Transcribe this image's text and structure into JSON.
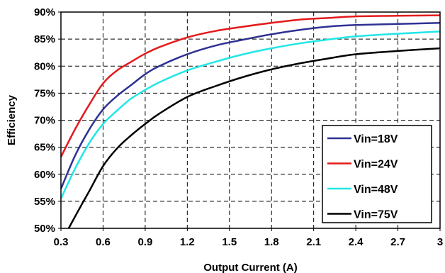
{
  "chart_data": {
    "type": "line",
    "xlabel": "Output Current (A)",
    "ylabel": "Efficiency",
    "xlim": [
      0.3,
      3.0
    ],
    "ylim": [
      50,
      90
    ],
    "x_ticks": [
      "0.3",
      "0.6",
      "0.9",
      "1.2",
      "1.5",
      "1.8",
      "2.1",
      "2.4",
      "2.7",
      "3"
    ],
    "y_ticks": [
      "50%",
      "55%",
      "60%",
      "65%",
      "70%",
      "75%",
      "80%",
      "85%",
      "90%"
    ],
    "grid": true,
    "grid_style": "dashed",
    "legend_position": "bottom-right",
    "series": [
      {
        "name": "Vin=18V",
        "color": "#2e3192",
        "points": [
          [
            0.3,
            57.3
          ],
          [
            0.4,
            63.4
          ],
          [
            0.5,
            68.2
          ],
          [
            0.6,
            72.0
          ],
          [
            0.7,
            74.5
          ],
          [
            0.8,
            76.5
          ],
          [
            0.9,
            78.5
          ],
          [
            1.0,
            80.0
          ],
          [
            1.2,
            82.2
          ],
          [
            1.4,
            83.8
          ],
          [
            1.6,
            84.9
          ],
          [
            1.8,
            85.9
          ],
          [
            2.0,
            86.7
          ],
          [
            2.2,
            87.3
          ],
          [
            2.4,
            87.6
          ],
          [
            2.7,
            87.8
          ],
          [
            3.0,
            88.0
          ]
        ]
      },
      {
        "name": "Vin=24V",
        "color": "#e31a1c",
        "points": [
          [
            0.3,
            63.2
          ],
          [
            0.4,
            68.3
          ],
          [
            0.5,
            72.8
          ],
          [
            0.6,
            76.8
          ],
          [
            0.7,
            79.2
          ],
          [
            0.8,
            80.8
          ],
          [
            0.9,
            82.3
          ],
          [
            1.0,
            83.5
          ],
          [
            1.2,
            85.3
          ],
          [
            1.4,
            86.5
          ],
          [
            1.6,
            87.3
          ],
          [
            1.8,
            88.0
          ],
          [
            2.0,
            88.6
          ],
          [
            2.2,
            88.9
          ],
          [
            2.4,
            89.2
          ],
          [
            2.7,
            89.3
          ],
          [
            3.0,
            89.4
          ]
        ]
      },
      {
        "name": "Vin=48V",
        "color": "#22e6e6",
        "points": [
          [
            0.3,
            55.5
          ],
          [
            0.4,
            61.0
          ],
          [
            0.5,
            65.7
          ],
          [
            0.6,
            69.3
          ],
          [
            0.7,
            71.8
          ],
          [
            0.8,
            74.0
          ],
          [
            0.9,
            75.6
          ],
          [
            1.0,
            77.0
          ],
          [
            1.2,
            79.2
          ],
          [
            1.4,
            80.8
          ],
          [
            1.6,
            82.2
          ],
          [
            1.8,
            83.3
          ],
          [
            2.0,
            84.2
          ],
          [
            2.2,
            84.9
          ],
          [
            2.4,
            85.5
          ],
          [
            2.7,
            86.0
          ],
          [
            3.0,
            86.4
          ]
        ]
      },
      {
        "name": "Vin=75V",
        "color": "#000000",
        "points": [
          [
            0.355,
            50.0
          ],
          [
            0.45,
            54.5
          ],
          [
            0.5,
            56.8
          ],
          [
            0.6,
            61.5
          ],
          [
            0.7,
            64.8
          ],
          [
            0.8,
            67.2
          ],
          [
            0.9,
            69.3
          ],
          [
            1.0,
            71.2
          ],
          [
            1.2,
            74.3
          ],
          [
            1.4,
            76.3
          ],
          [
            1.6,
            78.0
          ],
          [
            1.8,
            79.4
          ],
          [
            2.0,
            80.5
          ],
          [
            2.2,
            81.4
          ],
          [
            2.4,
            82.2
          ],
          [
            2.7,
            82.8
          ],
          [
            3.0,
            83.3
          ]
        ]
      }
    ]
  }
}
